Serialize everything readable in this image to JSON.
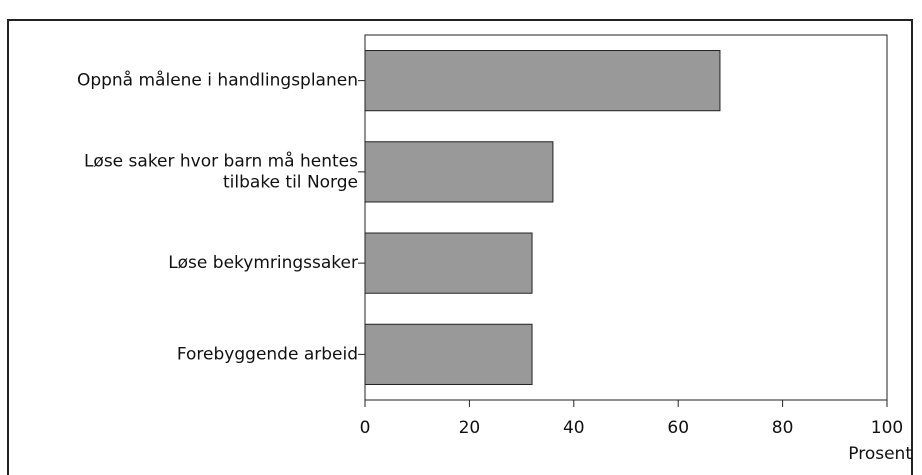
{
  "chart_data": {
    "type": "bar",
    "orientation": "horizontal",
    "categories": [
      "Oppnå målene i handlingsplanen",
      "Løse saker hvor barn må hentes\ntilbake til Norge",
      "Løse bekymringssaker",
      "Forebyggende arbeid"
    ],
    "values": [
      68,
      36,
      32,
      32
    ],
    "color": "#999999",
    "xlabel": "Prosent",
    "xlim": [
      0,
      100
    ],
    "xticks": [
      0,
      20,
      40,
      60,
      80,
      100
    ],
    "grid": false
  }
}
